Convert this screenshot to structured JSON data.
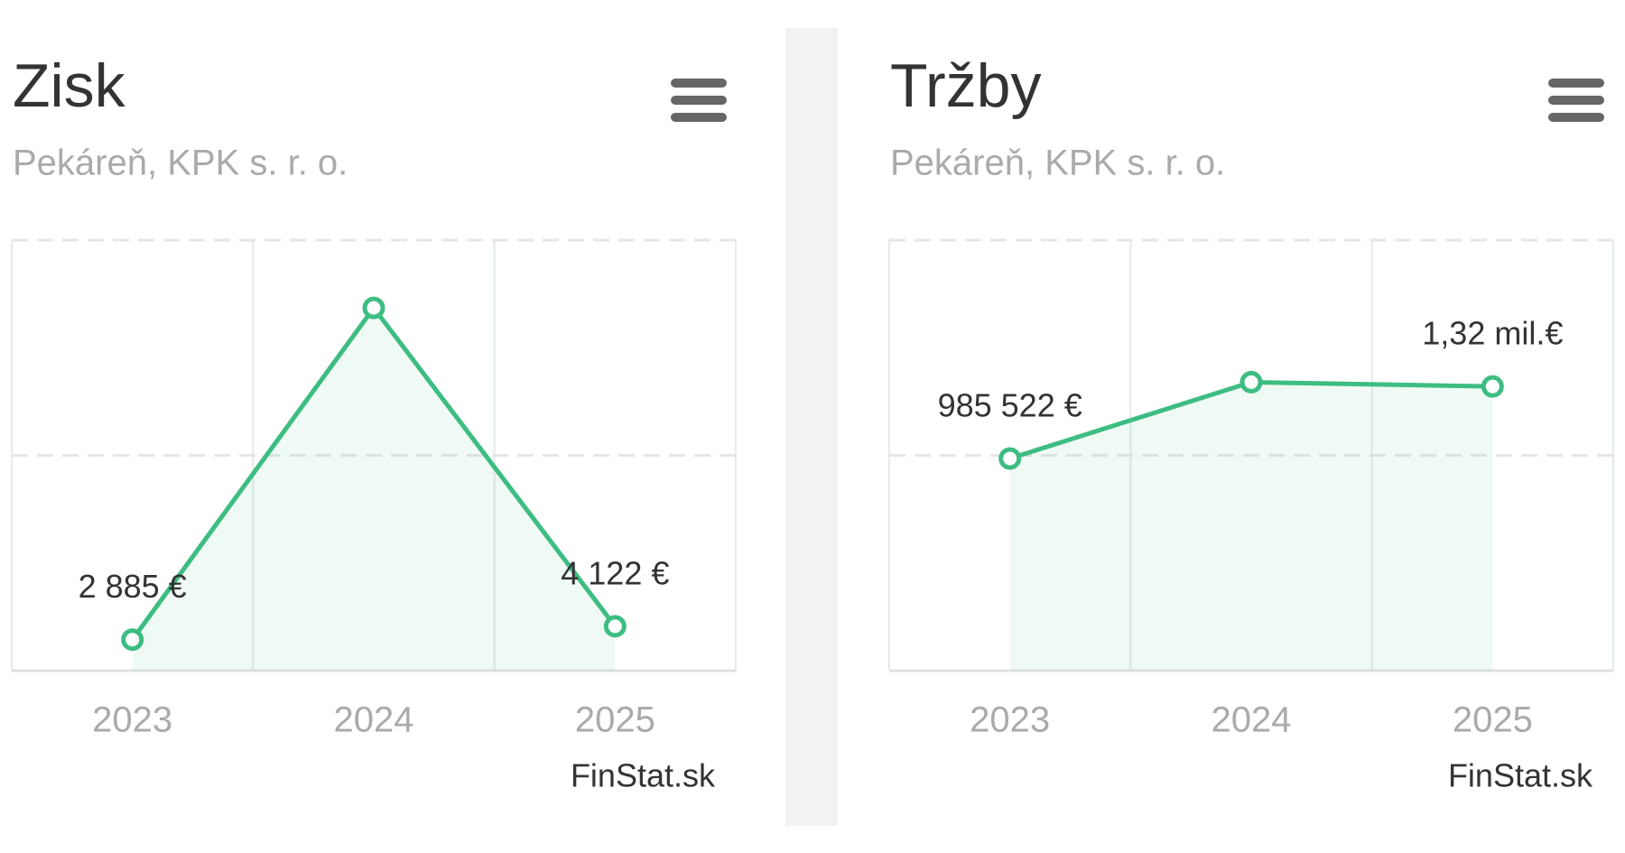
{
  "chart_data": [
    {
      "type": "line",
      "title": "Zisk",
      "subtitle": "Pekáreň, KPK s. r. o.",
      "credits": "FinStat.sk",
      "categories": [
        "2023",
        "2024",
        "2025"
      ],
      "values": [
        2885,
        33700,
        4122
      ],
      "value_labels": [
        "2 885 €",
        null,
        "4 122 €"
      ],
      "color": "#3dbd82",
      "ylim": [
        0,
        40000
      ],
      "yticks": [
        0,
        20000,
        40000
      ],
      "grid": true
    },
    {
      "type": "line",
      "title": "Tržby",
      "subtitle": "Pekáreň, KPK s. r. o.",
      "credits": "FinStat.sk",
      "categories": [
        "2023",
        "2024",
        "2025"
      ],
      "values": [
        985522,
        1340000,
        1320000
      ],
      "value_labels": [
        "985 522 €",
        null,
        "1,32 mil.€"
      ],
      "color": "#3dbd82",
      "ylim": [
        0,
        2000000
      ],
      "yticks": [
        0,
        1000000,
        2000000
      ],
      "grid": true
    }
  ]
}
